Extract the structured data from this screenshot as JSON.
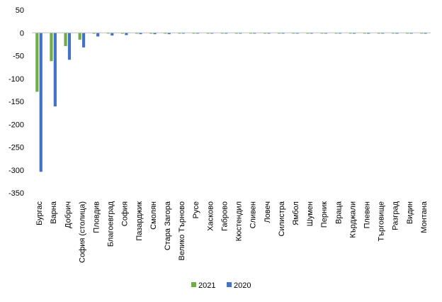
{
  "chart_data": {
    "type": "bar",
    "categories": [
      "Бургас",
      "Варна",
      "Добрич",
      "София (столица)",
      "Пловдив",
      "Благоевград",
      "София",
      "Пазарджик",
      "Смолян",
      "Стара Загора",
      "Велико Търново",
      "Русе",
      "Хасково",
      "Габрово",
      "Кюстендил",
      "Сливен",
      "Ловеч",
      "Силистра",
      "Ямбол",
      "Шумен",
      "Перник",
      "Враца",
      "Кърджали",
      "Плевен",
      "Търговище",
      "Разград",
      "Видин",
      "Монтана"
    ],
    "series": [
      {
        "name": "2021",
        "color": "#70ad47",
        "values": [
          -129,
          -62,
          -29,
          -15,
          -2,
          -1,
          -2,
          -2,
          -2,
          -2,
          0,
          0,
          -1,
          -1,
          -1,
          -1,
          -1,
          0,
          0,
          -1,
          0,
          -1,
          -1,
          -1,
          0,
          -1,
          0,
          -1
        ]
      },
      {
        "name": "2020",
        "color": "#4472c4",
        "values": [
          -304,
          -161,
          -59,
          -32,
          -8,
          -6,
          -5,
          -3,
          -3,
          -3,
          0,
          0,
          0,
          0,
          0,
          0,
          0,
          0,
          0,
          0,
          0,
          -1,
          -2,
          -2,
          -1,
          -2,
          -1,
          -2
        ]
      }
    ],
    "title": "",
    "xlabel": "",
    "ylabel": "",
    "ylim": [
      -350,
      50
    ],
    "yticks": [
      50,
      0,
      -50,
      -100,
      -150,
      -200,
      -250,
      -300,
      -350
    ],
    "grid": false,
    "legend": "bottom"
  }
}
